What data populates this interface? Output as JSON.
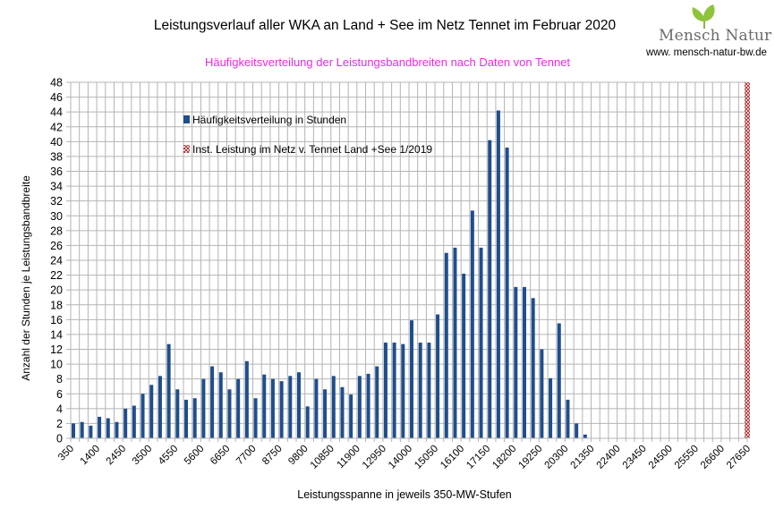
{
  "header": {
    "title": "Leistungsverlauf aller WKA an Land + See im Netz Tennet im Februar 2020",
    "subtitle": "Häufigkeitsverteilung der Leistungsbandbreiten nach Daten von Tennet",
    "subtitle_color": "#e32de3"
  },
  "brand": {
    "logo_text": "Mensch Natur",
    "url": "www. mensch-natur-bw.de",
    "leaf_color": "#8fc43a"
  },
  "chart_data": {
    "type": "bar",
    "title": "Leistungsverlauf aller WKA an Land + See im Netz Tennet im Februar 2020",
    "subtitle": "Häufigkeitsverteilung der Leistungsbandbreiten nach Daten von Tennet",
    "xlabel": "Leistungsspanne in jeweils 350-MW-Stufen",
    "ylabel": "Anzahl der Stunden je Leistungsbandbreite",
    "ylim": [
      0,
      48
    ],
    "ytick_step": 2,
    "grid": true,
    "legend_position": "top-left",
    "x_start": 350,
    "x_step": 350,
    "x_end": 27650,
    "tick_label_every": 3,
    "series": [
      {
        "name": "Häufigkeitsverteilung in Stunden",
        "color": "#1f4e8c",
        "values": [
          2,
          2.2,
          1.7,
          2.9,
          2.7,
          2.2,
          4,
          4.4,
          6,
          7.2,
          8.4,
          12.7,
          6.6,
          5.2,
          5.4,
          8,
          9.7,
          8.9,
          6.6,
          8,
          10.4,
          5.4,
          8.6,
          8,
          7.7,
          8.4,
          8.9,
          4.3,
          8,
          6.6,
          8.4,
          6.9,
          5.9,
          8.4,
          8.7,
          9.7,
          12.9,
          12.9,
          12.7,
          15.9,
          12.9,
          12.9,
          16.7,
          25,
          25.7,
          22.2,
          30.7,
          25.7,
          40.2,
          44.2,
          39.2,
          20.4,
          20.4,
          18.9,
          12,
          8.1,
          15.5,
          5.2,
          2,
          0.5
        ]
      },
      {
        "name": "Inst. Leistung im Netz v. Tennet  Land +See 1/2019",
        "color": "#b03030",
        "x": 27650,
        "value": 48
      }
    ]
  }
}
